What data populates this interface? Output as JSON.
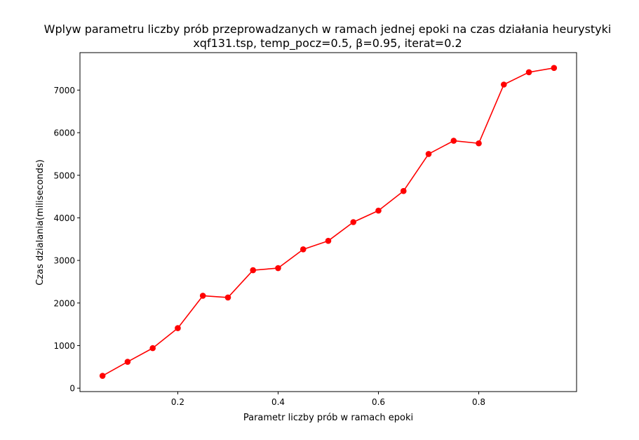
{
  "chart_data": {
    "type": "line",
    "title": "Wplyw parametru liczby prób przeprowadzanych w ramach jednej epoki na czas działania heurystyki",
    "subtitle": "xqf131.tsp, temp_pocz=0.5, β=0.95, iterat=0.2",
    "xlabel": "Parametr liczby prób w ramach epoki",
    "ylabel": "Czas dzialania(miliseconds)",
    "xlim": [
      0.005,
      0.995
    ],
    "ylim": [
      -80,
      7880
    ],
    "xticks": [
      0.2,
      0.4,
      0.6,
      0.8
    ],
    "xtick_labels": [
      "0.2",
      "0.4",
      "0.6",
      "0.8"
    ],
    "yticks": [
      0,
      1000,
      2000,
      3000,
      4000,
      5000,
      6000,
      7000
    ],
    "ytick_labels": [
      "0",
      "1000",
      "2000",
      "3000",
      "4000",
      "5000",
      "6000",
      "7000"
    ],
    "grid": false,
    "series": [
      {
        "color": "#ff0000",
        "marker": "circle",
        "x": [
          0.05,
          0.1,
          0.15,
          0.2,
          0.25,
          0.3,
          0.35,
          0.4,
          0.45,
          0.5,
          0.55,
          0.6,
          0.65,
          0.7,
          0.75,
          0.8,
          0.85,
          0.9,
          0.95
        ],
        "y": [
          290,
          620,
          940,
          1410,
          2170,
          2130,
          2770,
          2820,
          3260,
          3460,
          3900,
          4170,
          4630,
          5500,
          5810,
          5750,
          7130,
          7420,
          7520
        ]
      }
    ]
  }
}
